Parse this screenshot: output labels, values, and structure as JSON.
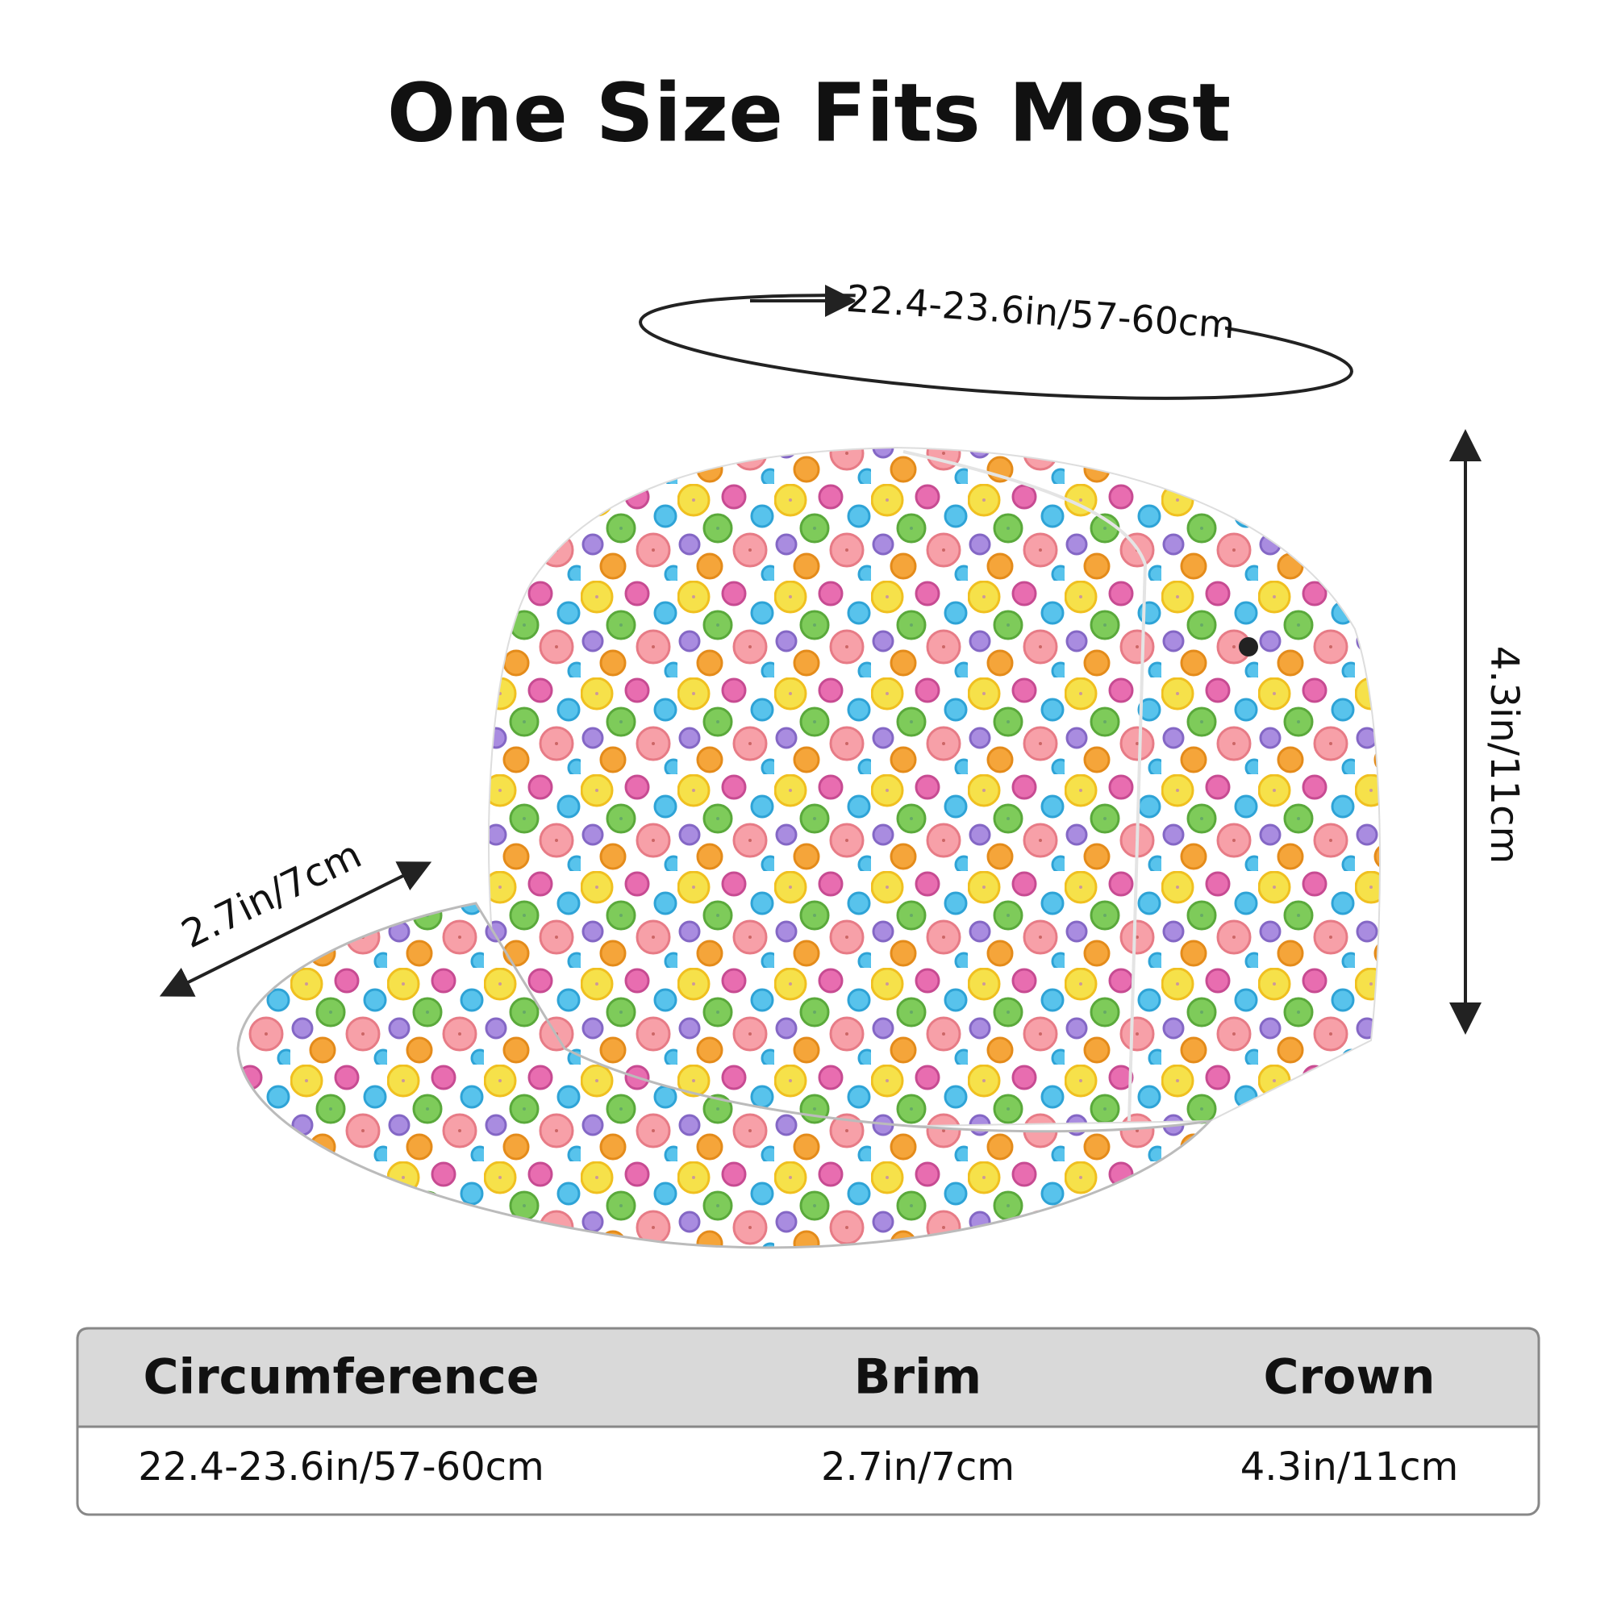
{
  "title": "One Size Fits Most",
  "dimensions": {
    "circumference": "22.4-23.6in/57-60cm",
    "brim": "2.7in/7cm",
    "crown": "4.3in/11cm"
  },
  "table": {
    "headers": [
      "Circumference",
      "Brim",
      "Crown"
    ],
    "rows": [
      [
        "22.4-23.6in/57-60cm",
        "2.7in/7cm",
        "4.3in/11cm"
      ]
    ]
  }
}
